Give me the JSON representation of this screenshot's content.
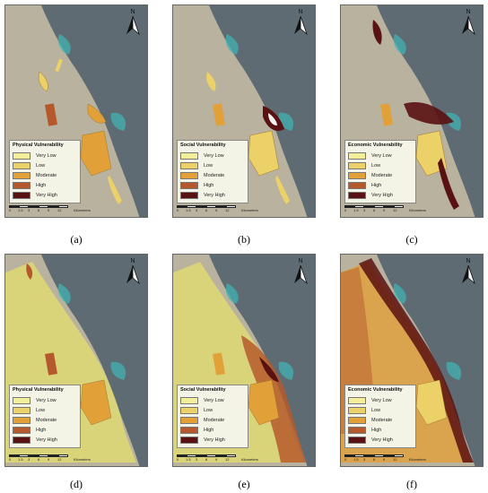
{
  "colors": {
    "sea": "#5e6b73",
    "land": "#b8b09c",
    "very_low": "#f3ee9a",
    "low": "#ecd168",
    "moderate": "#e2a039",
    "high": "#b5592c",
    "very_high": "#5a1111"
  },
  "legend_levels": [
    "Very Low",
    "Low",
    "Moderate",
    "High",
    "Very High"
  ],
  "scale": {
    "ticks": [
      "0",
      "1.5",
      "3",
      "6",
      "9",
      "12"
    ],
    "unit": "Kilometers"
  },
  "north_label": "N",
  "panels": [
    {
      "caption": "(a)",
      "legend_title": "Physical Vulnerability"
    },
    {
      "caption": "(b)",
      "legend_title": "Social Vulnerability"
    },
    {
      "caption": "(c)",
      "legend_title": "Economic Vulnerability"
    },
    {
      "caption": "(d)",
      "legend_title": "Physical Vulnerability"
    },
    {
      "caption": "(e)",
      "legend_title": "Social Vulnerability"
    },
    {
      "caption": "(f)",
      "legend_title": "Economic Vulnerability"
    }
  ]
}
